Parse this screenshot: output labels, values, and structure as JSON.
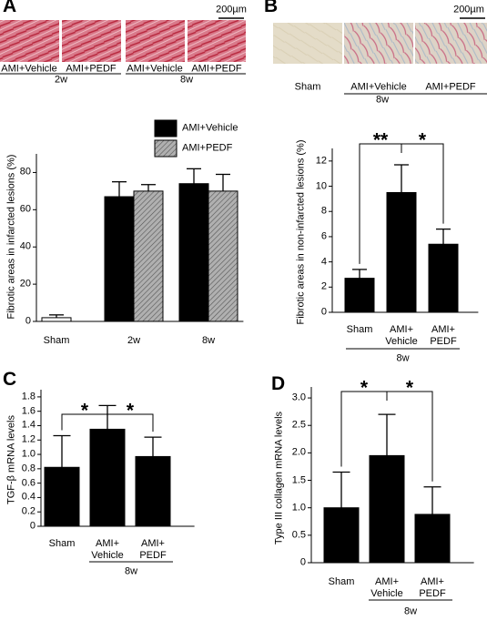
{
  "chart_data": [
    {
      "type": "bar",
      "panel": "A",
      "ylabel": "Fibrotic areas in infarcted lesions (%)",
      "categories": [
        "Sham",
        "2w",
        "8w"
      ],
      "series": [
        {
          "color": "#ffffff",
          "values": [
            2,
            null,
            null
          ],
          "errors": [
            1.5,
            null,
            null
          ]
        },
        {
          "name": "AMI+Vehicle",
          "color": "#000000",
          "values": [
            null,
            67,
            74
          ],
          "errors": [
            null,
            8,
            8
          ]
        },
        {
          "name": "AMI+PEDF",
          "color": "#9a9a9a",
          "pattern": "hatch",
          "values": [
            null,
            70,
            70
          ],
          "errors": [
            null,
            3.5,
            9
          ]
        }
      ],
      "ylim": [
        0,
        90
      ],
      "yticks": [
        0,
        20,
        40,
        60,
        80
      ],
      "legend": "upper right",
      "images": {
        "labels": [
          "AMI+Vehicle",
          "AMI+PEDF",
          "AMI+Vehicle",
          "AMI+PEDF"
        ],
        "groups": [
          "2w",
          "8w"
        ],
        "scale_bar": "200µm"
      }
    },
    {
      "type": "bar",
      "panel": "B",
      "ylabel": "Fibrotic areas in non-infarcted lesions (%)",
      "categories": [
        "Sham",
        "AMI+\nVehicle",
        "AMI+\nPEDF"
      ],
      "values": [
        2.7,
        9.5,
        5.4
      ],
      "errors": [
        0.7,
        2.2,
        1.2
      ],
      "color": "#000000",
      "ylim": [
        0,
        13
      ],
      "yticks": [
        0,
        2,
        4,
        6,
        8,
        10,
        12
      ],
      "group_label": "8w",
      "annotations": [
        "**",
        "*"
      ],
      "images": {
        "labels": [
          "Sham",
          "AMI+Vehicle",
          "AMI+PEDF"
        ],
        "groups": [
          "8w"
        ],
        "scale_bar": "200µm"
      }
    },
    {
      "type": "bar",
      "panel": "C",
      "ylabel": "TGF-β mRNA  levels",
      "categories": [
        "Sham",
        "AMI+\nVehicle",
        "AMI+\nPEDF"
      ],
      "values": [
        0.82,
        1.35,
        0.97
      ],
      "errors": [
        0.44,
        0.33,
        0.27
      ],
      "color": "#000000",
      "ylim": [
        0,
        1.9
      ],
      "yticks": [
        0,
        0.2,
        0.4,
        0.6,
        0.8,
        {
          "value": 1,
          "label": "1.0"
        },
        1.2,
        1.4,
        1.6,
        1.8
      ],
      "group_label": "8w",
      "annotations": [
        "*",
        "*"
      ]
    },
    {
      "type": "bar",
      "panel": "D",
      "ylabel": "Type III collagen mRNA levels",
      "categories": [
        "Sham",
        "AMI+\nVehicle",
        "AMI+\nPEDF"
      ],
      "values": [
        1.0,
        1.95,
        0.88
      ],
      "errors": [
        0.65,
        0.75,
        0.5
      ],
      "color": "#000000",
      "ylim": [
        0,
        3.2
      ],
      "yticks": [
        0,
        0.5,
        {
          "value": 1,
          "label": "1.0"
        },
        1.5,
        {
          "value": 2,
          "label": "2.0"
        },
        2.5,
        {
          "value": 3,
          "label": "3.0"
        }
      ],
      "group_label": "8w",
      "annotations": [
        "*",
        "*"
      ]
    }
  ]
}
